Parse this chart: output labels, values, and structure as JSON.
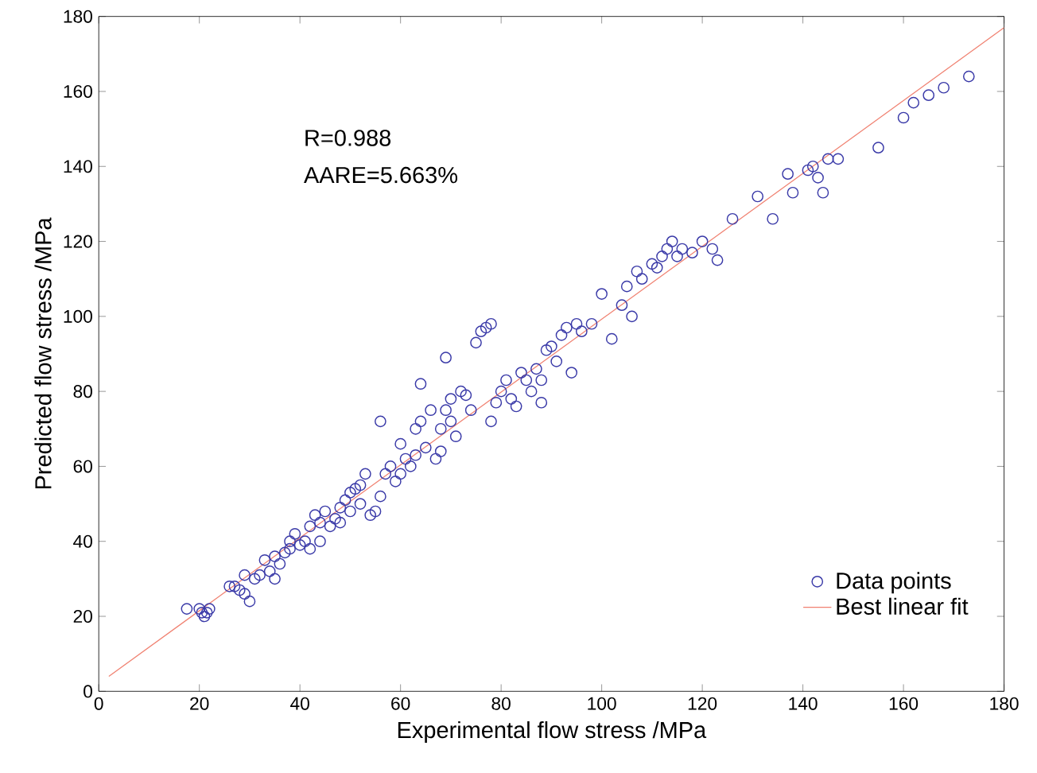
{
  "chart_data": {
    "type": "scatter",
    "xlabel": "Experimental flow stress /MPa",
    "ylabel": "Predicted flow stress /MPa",
    "annotations": [
      "R=0.988",
      "AARE=5.663%"
    ],
    "xlim": [
      0,
      180
    ],
    "ylim": [
      0,
      180
    ],
    "xticks": [
      0,
      20,
      40,
      60,
      80,
      100,
      120,
      140,
      160,
      180
    ],
    "yticks": [
      0,
      20,
      40,
      60,
      80,
      100,
      120,
      140,
      160,
      180
    ],
    "grid": false,
    "legend": "bottom right",
    "series": [
      {
        "name": "Data points",
        "marker": "circle",
        "color": "#3a3aa8",
        "x": [
          17.5,
          20,
          21,
          21.5,
          22,
          20.5,
          26,
          27,
          28,
          29,
          30,
          29,
          31,
          32,
          33,
          34,
          35,
          35,
          36,
          37,
          38,
          38,
          39,
          40,
          41,
          42,
          42,
          43,
          44,
          44,
          45,
          46,
          47,
          48,
          48,
          49,
          50,
          50,
          51,
          52,
          52,
          53,
          54,
          55,
          56,
          56,
          57,
          58,
          59,
          60,
          60,
          61,
          62,
          63,
          63,
          64,
          64,
          65,
          66,
          67,
          68,
          68,
          69,
          69,
          70,
          70,
          71,
          72,
          73,
          74,
          75,
          76,
          77,
          78,
          78,
          79,
          80,
          81,
          82,
          83,
          84,
          85,
          86,
          87,
          88,
          88,
          89,
          90,
          91,
          92,
          93,
          94,
          95,
          96,
          98,
          100,
          102,
          104,
          105,
          106,
          107,
          108,
          110,
          111,
          112,
          113,
          114,
          115,
          116,
          118,
          120,
          122,
          123,
          126,
          131,
          134,
          137,
          138,
          141,
          142,
          143,
          144,
          145,
          147,
          155,
          160,
          162,
          165,
          168,
          173
        ],
        "values": [
          22,
          22,
          20,
          21,
          22,
          21,
          28,
          28,
          27,
          26,
          24,
          31,
          30,
          31,
          35,
          32,
          30,
          36,
          34,
          37,
          38,
          40,
          42,
          39,
          40,
          44,
          38,
          47,
          45,
          40,
          48,
          44,
          46,
          45,
          49,
          51,
          53,
          48,
          54,
          55,
          50,
          58,
          47,
          48,
          52,
          72,
          58,
          60,
          56,
          58,
          66,
          62,
          60,
          63,
          70,
          72,
          82,
          65,
          75,
          62,
          64,
          70,
          75,
          89,
          72,
          78,
          68,
          80,
          79,
          75,
          93,
          96,
          97,
          98,
          72,
          77,
          80,
          83,
          78,
          76,
          85,
          83,
          80,
          86,
          77,
          83,
          91,
          92,
          88,
          95,
          97,
          85,
          98,
          96,
          98,
          106,
          94,
          103,
          108,
          100,
          112,
          110,
          114,
          113,
          116,
          118,
          120,
          116,
          118,
          117,
          120,
          118,
          115,
          126,
          132,
          126,
          138,
          133,
          139,
          140,
          137,
          133,
          142,
          142,
          145,
          153,
          157,
          159,
          161,
          164
        ]
      },
      {
        "name": "Best linear fit",
        "type": "line",
        "marker": "none",
        "color": "#f08070",
        "x": [
          2,
          180
        ],
        "values": [
          4,
          177
        ]
      }
    ]
  }
}
